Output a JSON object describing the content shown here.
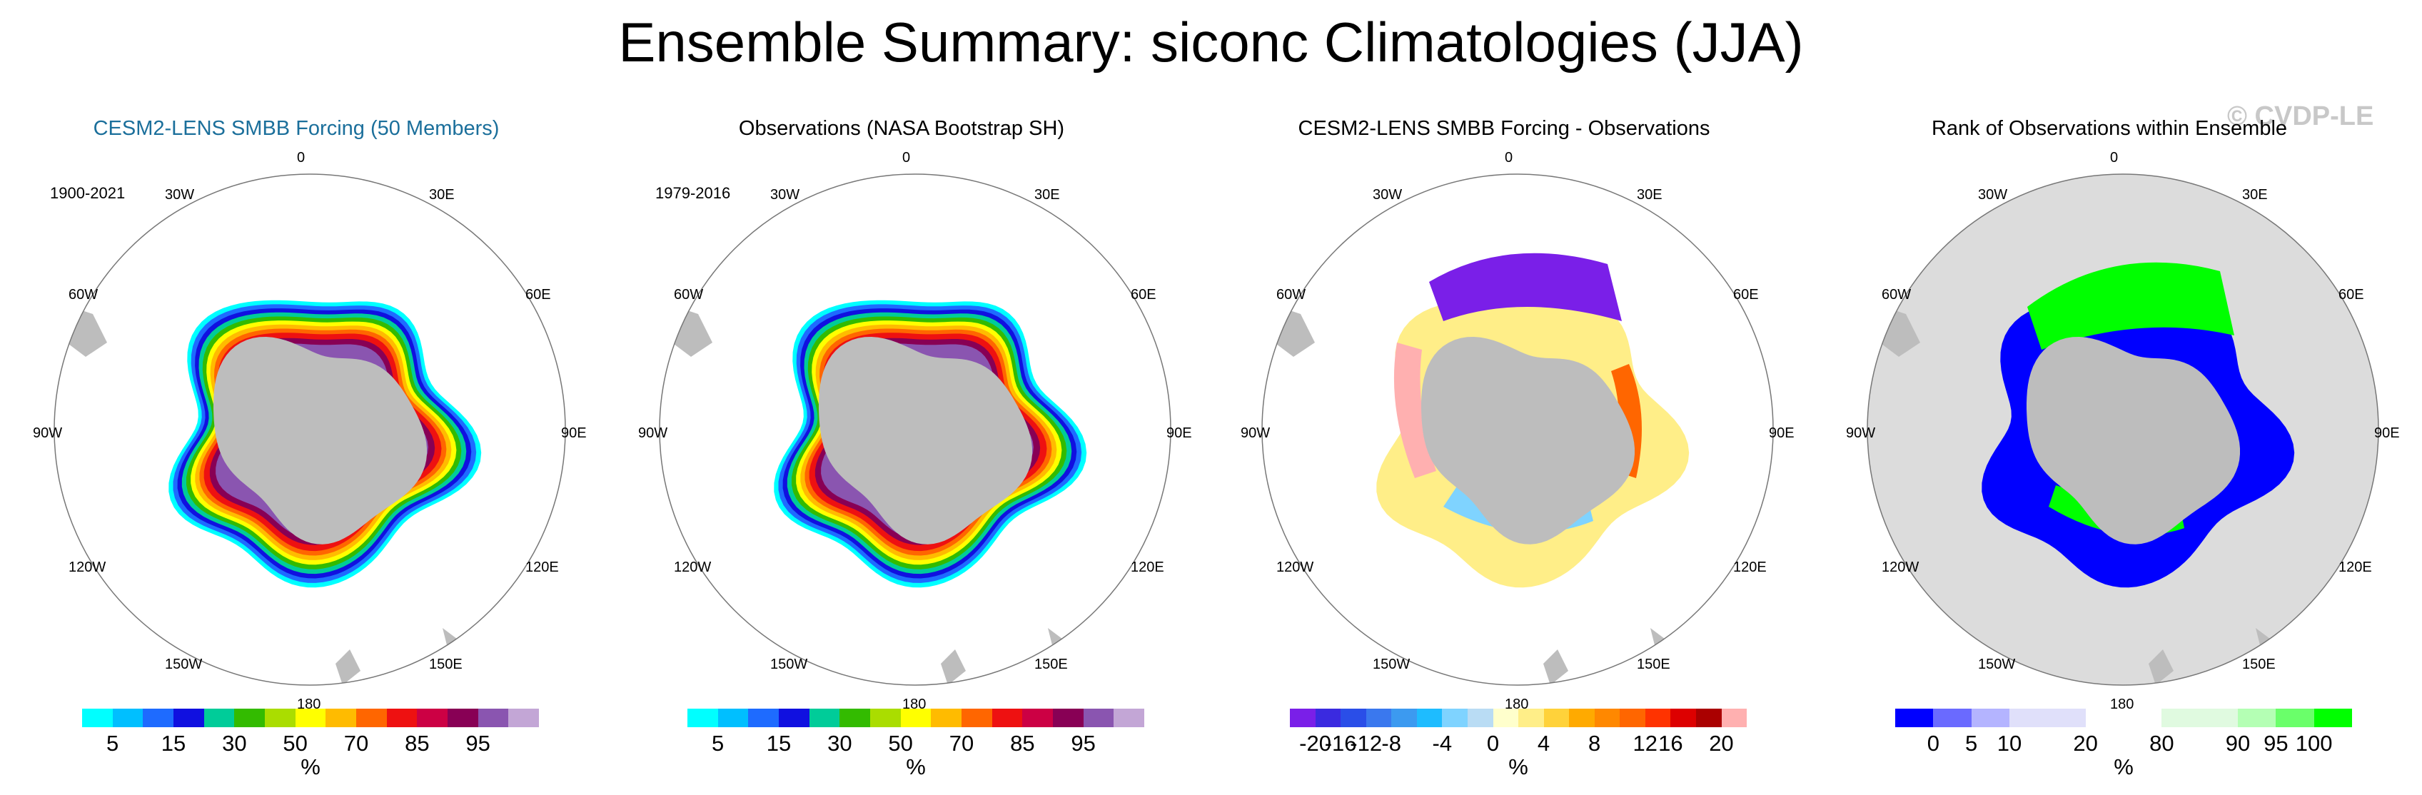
{
  "title": "Ensemble Summary: siconc Climatologies (JJA)",
  "watermark": "© CVDP-LE",
  "lon_labels": [
    "0",
    "30E",
    "60E",
    "90E",
    "120E",
    "150E",
    "180",
    "150W",
    "120W",
    "90W",
    "60W",
    "30W"
  ],
  "panels": [
    {
      "title": "CESM2-LENS SMBB Forcing (50 Members)",
      "title_color": "#1b6f9b",
      "period": "1900-2021",
      "colorbar": {
        "colors": [
          "#00ffff",
          "#00bfff",
          "#1e6bff",
          "#1010e0",
          "#00cc99",
          "#33bb00",
          "#aadd00",
          "#ffff00",
          "#ffbb00",
          "#ff6600",
          "#ee1111",
          "#cc0044",
          "#880055",
          "#8a55b0",
          "#c3a6d6"
        ],
        "ticks": [
          {
            "label": "5",
            "i": 1
          },
          {
            "label": "15",
            "i": 3
          },
          {
            "label": "30",
            "i": 5
          },
          {
            "label": "50",
            "i": 7
          },
          {
            "label": "70",
            "i": 9
          },
          {
            "label": "85",
            "i": 11
          },
          {
            "label": "95",
            "i": 13
          }
        ],
        "units": "%"
      }
    },
    {
      "title": "Observations (NASA Bootstrap SH)",
      "title_color": "#000000",
      "period": "1979-2016",
      "colorbar": {
        "colors": [
          "#00ffff",
          "#00bfff",
          "#1e6bff",
          "#1010e0",
          "#00cc99",
          "#33bb00",
          "#aadd00",
          "#ffff00",
          "#ffbb00",
          "#ff6600",
          "#ee1111",
          "#cc0044",
          "#880055",
          "#8a55b0",
          "#c3a6d6"
        ],
        "ticks": [
          {
            "label": "5",
            "i": 1
          },
          {
            "label": "15",
            "i": 3
          },
          {
            "label": "30",
            "i": 5
          },
          {
            "label": "50",
            "i": 7
          },
          {
            "label": "70",
            "i": 9
          },
          {
            "label": "85",
            "i": 11
          },
          {
            "label": "95",
            "i": 13
          }
        ],
        "units": "%"
      }
    },
    {
      "title": "CESM2-LENS SMBB Forcing - Observations",
      "title_color": "#000000",
      "period": "",
      "colorbar": {
        "colors": [
          "#7a1fe8",
          "#3a2ae0",
          "#2a4ee8",
          "#3a78ee",
          "#3c9af0",
          "#1ebcff",
          "#7fd3ff",
          "#b9dcf4",
          "#ffffcc",
          "#ffee88",
          "#ffd23a",
          "#ffaa00",
          "#ff8800",
          "#ff6600",
          "#ff3300",
          "#dd0000",
          "#aa0000",
          "#ffb0b0"
        ],
        "ticks": [
          {
            "label": "-20",
            "i": 1
          },
          {
            "label": "-16",
            "i": 2
          },
          {
            "label": "-12",
            "i": 3
          },
          {
            "label": "-8",
            "i": 4
          },
          {
            "label": "-4",
            "i": 6
          },
          {
            "label": "0",
            "i": 8
          },
          {
            "label": "4",
            "i": 10
          },
          {
            "label": "8",
            "i": 12
          },
          {
            "label": "12",
            "i": 14
          },
          {
            "label": "16",
            "i": 15
          },
          {
            "label": "20",
            "i": 17
          }
        ],
        "units": "%"
      }
    },
    {
      "title": "Rank of Observations within Ensemble",
      "title_color": "#000000",
      "period": "",
      "colorbar": {
        "colors": [
          "#0000ff",
          "#6a6aff",
          "#b4b4ff",
          "#e0e0fa",
          "#e0e0fa",
          "#ffffff",
          "#ffffff",
          "#e0fae0",
          "#e0fae0",
          "#b4ffb4",
          "#6aff6a",
          "#00ff00"
        ],
        "ticks": [
          {
            "label": "0",
            "i": 1
          },
          {
            "label": "5",
            "i": 2
          },
          {
            "label": "10",
            "i": 3
          },
          {
            "label": "20",
            "i": 5
          },
          {
            "label": "80",
            "i": 7
          },
          {
            "label": "90",
            "i": 9
          },
          {
            "label": "95",
            "i": 10
          },
          {
            "label": "100",
            "i": 11
          }
        ],
        "units": "%"
      }
    }
  ]
}
